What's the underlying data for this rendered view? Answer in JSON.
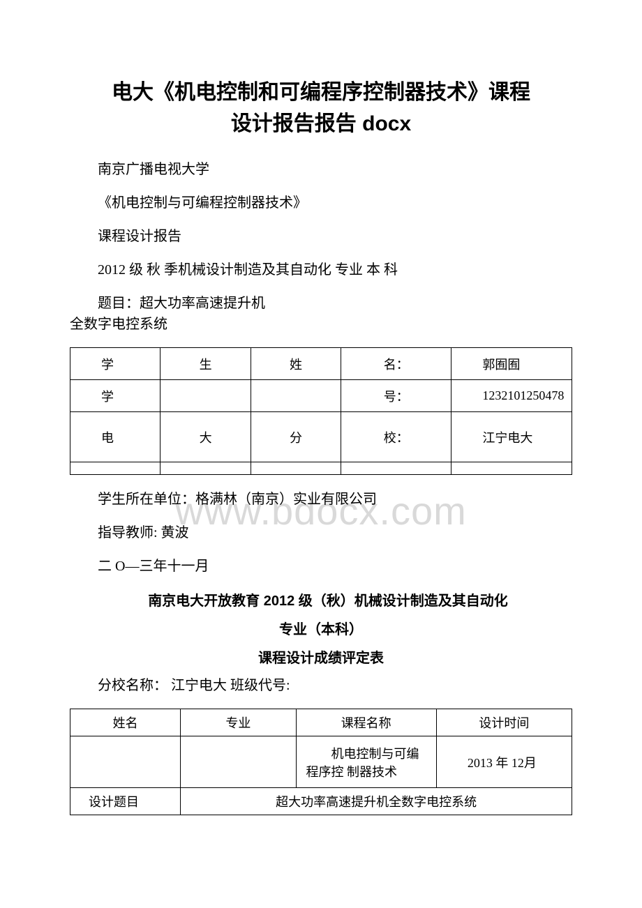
{
  "title_line1": "电大《机电控制和可编程序控制器技术》课程",
  "title_line2": "设计报告报告 docx",
  "p1": "南京广播电视大学",
  "p2": "《机电控制与可编程控制器技术》",
  "p3": "课程设计报告",
  "p4": "2012 级 秋 季机械设计制造及其自动化 专业 本 科",
  "p5a": "题目：超大功率高速提升机",
  "p5b": "全数字电控系统",
  "table1": {
    "r1": {
      "c1": "学",
      "c2": "生",
      "c3": "姓",
      "c4": "名：",
      "c5": "郭囿囿"
    },
    "r2": {
      "c1": "学",
      "c2": "",
      "c3": "",
      "c4": "号：",
      "c5": "1232101250478"
    },
    "r3": {
      "c1": "电",
      "c2": "大",
      "c3": "分",
      "c4": "校：",
      "c5": "江宁电大"
    }
  },
  "p6": "学生所在单位：格满林（南京）实业有限公司",
  "p7": "指导教师: 黄波",
  "p8": "二 O—三年十一月",
  "h1": "南京电大开放教育 2012 级（秋）机械设计制造及其自动化",
  "h2": "专业（本科）",
  "h3": "课程设计成绩评定表",
  "p9": "分校名称： 江宁电大 班级代号:",
  "table2": {
    "hdr": {
      "c1": "姓名",
      "c2": "专业",
      "c3": "课程名称",
      "c4": "设计时间"
    },
    "r2": {
      "c1": "",
      "c2": "",
      "c3": "机电控制与可编程序控 制器技术",
      "c4": "2013 年 12月"
    },
    "r3": {
      "lbl": "设计题目",
      "val": "超大功率高速提升机全数字电控系统"
    }
  },
  "watermark": "www.bdocx.com"
}
